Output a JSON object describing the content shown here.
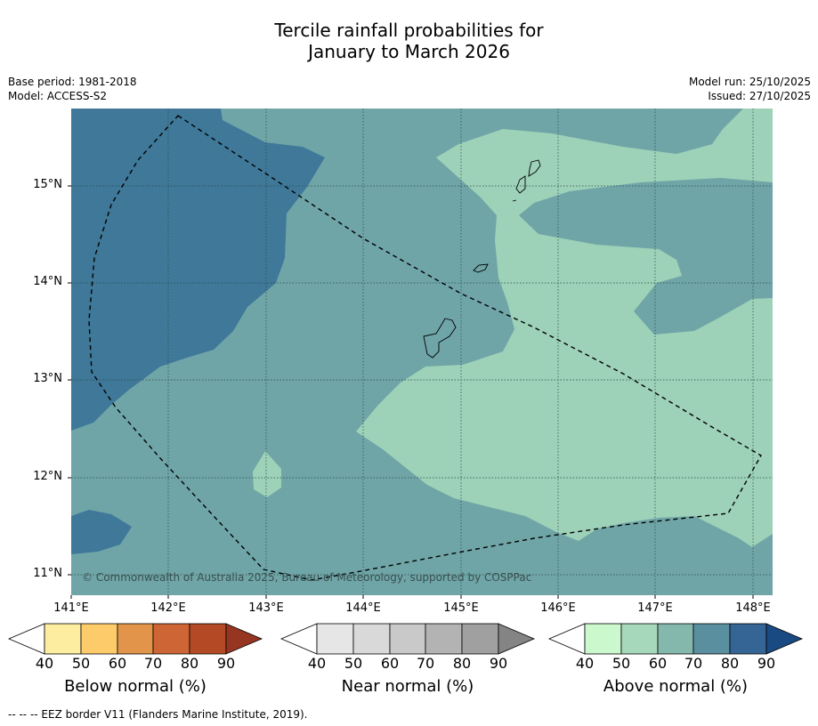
{
  "title_line1": "Tercile rainfall probabilities for",
  "title_line2": "January to March 2026",
  "meta_left": {
    "base_period": "Base period: 1981-2018",
    "model": "Model: ACCESS-S2"
  },
  "meta_right": {
    "model_run": "Model run: 25/10/2025",
    "issued": "Issued: 27/10/2025"
  },
  "latitude_labels": [
    "15°N",
    "14°N",
    "13°N",
    "12°N",
    "11°N"
  ],
  "longitude_labels": [
    "141°E",
    "142°E",
    "143°E",
    "144°E",
    "145°E",
    "146°E",
    "147°E",
    "148°E"
  ],
  "copyright": "© Commonwealth of Australia 2025, Bureau of Meteorology, supported by COSPPac",
  "colorbars": [
    {
      "label": "Below normal (%)",
      "ticks": [
        "40",
        "50",
        "60",
        "70",
        "80",
        "90"
      ],
      "colors": [
        "#ffffff",
        "#fdeda1",
        "#fdcb6a",
        "#e1944a",
        "#cd6534",
        "#b34a25",
        "#963522"
      ]
    },
    {
      "label": "Near normal (%)",
      "ticks": [
        "40",
        "50",
        "60",
        "70",
        "80",
        "90"
      ],
      "colors": [
        "#ffffff",
        "#e6e6e6",
        "#d9d9d9",
        "#c9c9c9",
        "#b3b3b3",
        "#a0a0a0",
        "#848484"
      ]
    },
    {
      "label": "Above normal (%)",
      "ticks": [
        "40",
        "50",
        "60",
        "70",
        "80",
        "90"
      ],
      "colors": [
        "#ffffff",
        "#ccf8cd",
        "#a6d8bc",
        "#85b8ac",
        "#5a8fa0",
        "#356594",
        "#1a4a82"
      ]
    }
  ],
  "map_colors": {
    "above_60_70": "#6fa5a7",
    "above_50_60": "#9dd1b8",
    "above_70_80": "#3f7898"
  },
  "footnote": "-- -- -- EEZ border V11 (Flanders Marine Institute, 2019)."
}
